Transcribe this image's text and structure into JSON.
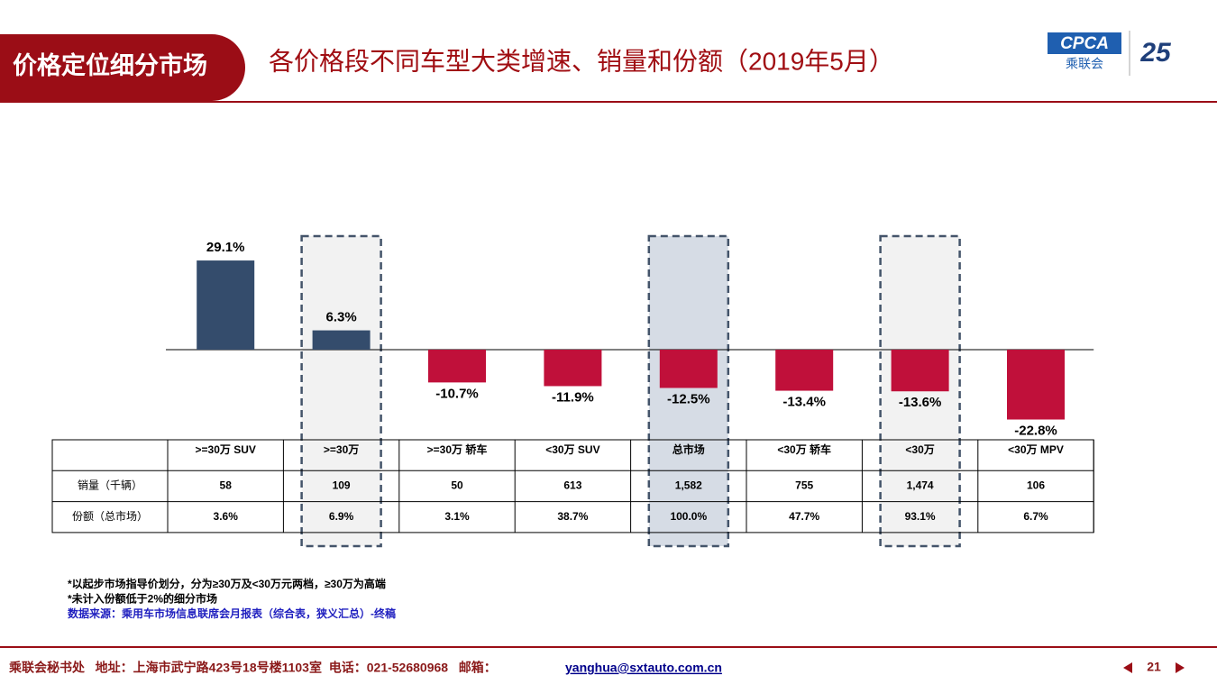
{
  "header": {
    "badge": "价格定位细分市场",
    "title": "各价格段不同车型大类增速、销量和份额（2019年5月）",
    "logo": "CPCA",
    "logo_sub": "乘联会",
    "anniversary": "25"
  },
  "chart_data": {
    "type": "bar",
    "categories": [
      ">=30万 SUV",
      ">=30万",
      ">=30万 轿车",
      "<30万 SUV",
      "总市场",
      "<30万 轿车",
      "<30万",
      "<30万 MPV"
    ],
    "values": [
      29.1,
      6.3,
      -10.7,
      -11.9,
      -12.5,
      -13.4,
      -13.6,
      -22.8
    ],
    "value_labels": [
      "29.1%",
      "6.3%",
      "-10.7%",
      "-11.9%",
      "-12.5%",
      "-13.4%",
      "-13.6%",
      "-22.8%"
    ],
    "positive_color": "#344c6c",
    "negative_color": "#c0103a"
  },
  "table": {
    "rows": [
      {
        "label": "销量（千辆）",
        "values": [
          "58",
          "109",
          "50",
          "613",
          "1,582",
          "755",
          "1,474",
          "106"
        ]
      },
      {
        "label": "份额（总市场）",
        "values": [
          "3.6%",
          "6.9%",
          "3.1%",
          "38.7%",
          "100.0%",
          "47.7%",
          "93.1%",
          "6.7%"
        ]
      }
    ]
  },
  "notes": [
    "*以起步市场指导价划分，分为≥30万及<30万元两档，≥30万为高端",
    "*未计入份额低于2%的细分市场",
    "数据来源：乘用车市场信息联席会月报表（综合表，狭义汇总）-终稿"
  ],
  "footer": {
    "text": "乘联会秘书处   地址：上海市武宁路423号18号楼1103室  电话：021-52680968   邮箱：",
    "email": "yanghua@sxtauto.com.cn",
    "page": "21"
  }
}
